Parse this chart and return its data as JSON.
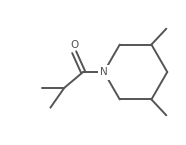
{
  "background_color": "#ffffff",
  "line_color": "#555555",
  "line_width": 1.4,
  "font_size": 7.5,
  "label_color": "#555555",
  "figsize": [
    1.86,
    1.45
  ],
  "dpi": 100
}
